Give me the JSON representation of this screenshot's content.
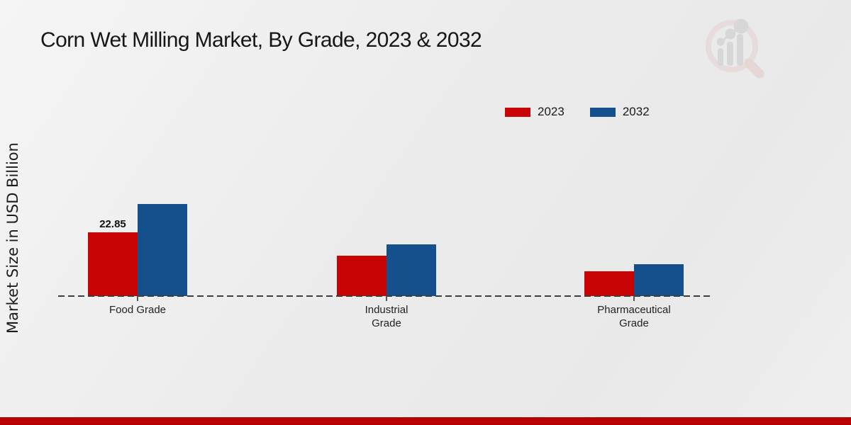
{
  "header": {
    "title": "Corn Wet Milling Market, By Grade, 2023 & 2032"
  },
  "chart_data": {
    "type": "bar",
    "title": "Corn Wet Milling Market, By Grade, 2023 & 2032",
    "ylabel": "Market Size in USD Billion",
    "xlabel": "",
    "categories": [
      "Food Grade",
      "Industrial Grade",
      "Pharmaceutical Grade"
    ],
    "categories_lines": [
      [
        "Food Grade"
      ],
      [
        "Industrial",
        "Grade"
      ],
      [
        "Pharmaceutical",
        "Grade"
      ]
    ],
    "series": [
      {
        "name": "2023",
        "color": "#c80404",
        "values": [
          22.85,
          14.5,
          8.9
        ]
      },
      {
        "name": "2032",
        "color": "#14508c",
        "values": [
          33.0,
          18.5,
          11.4
        ]
      }
    ],
    "value_labels": [
      {
        "series": "2023",
        "category": "Food Grade",
        "text": "22.85"
      }
    ],
    "legend_position": "top-right",
    "grid": false,
    "baseline_style": "dashed",
    "ylim": [
      0,
      35
    ]
  },
  "watermark": {
    "name": "market-research-magnifier-logo",
    "ring_color": "#e8d0d0",
    "bar_color": "#c9c9cd"
  },
  "footer": {
    "bar_color": "#bc0404"
  }
}
